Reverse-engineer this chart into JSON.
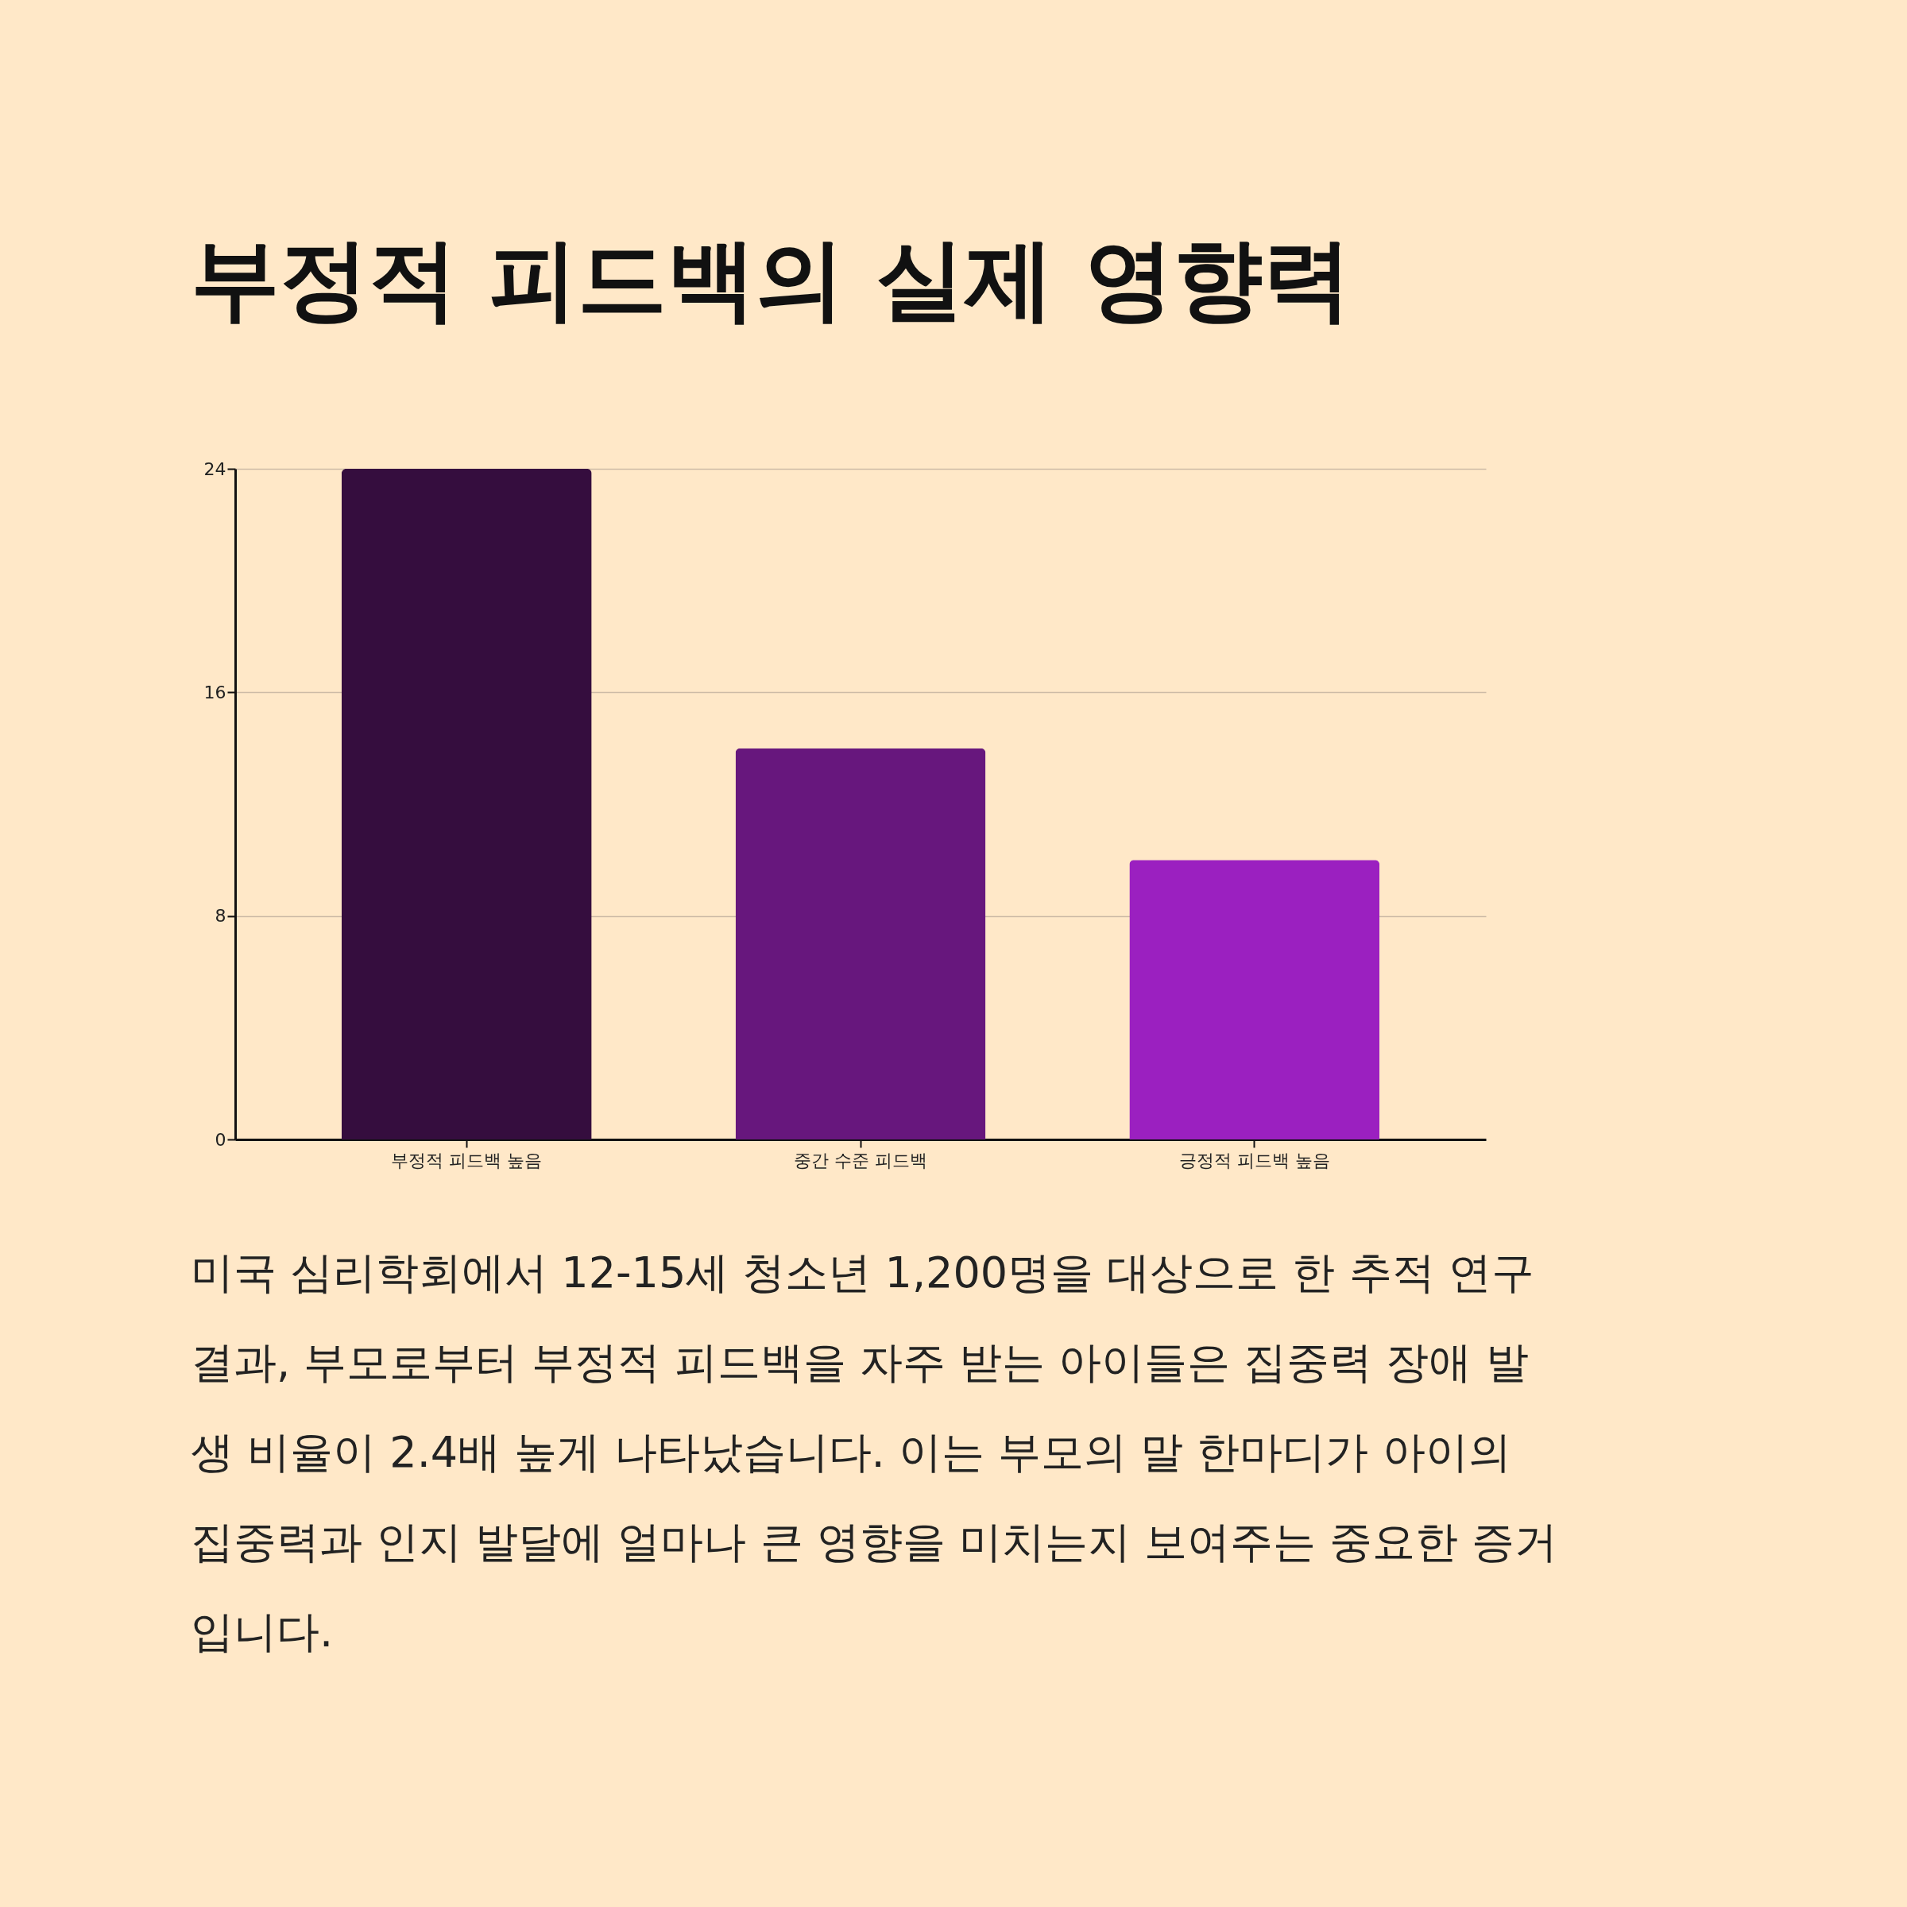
{
  "chart_data": {
    "type": "bar",
    "title": "부정적 피드백의 실제 영향력",
    "categories": [
      "부정적 피드백 높음",
      "중간 수준 피드백",
      "긍정적 피드백 높음"
    ],
    "values": [
      24,
      14,
      10
    ],
    "colors": [
      "#350d3e",
      "#67177d",
      "#9b20c0"
    ],
    "ylim": [
      0,
      24
    ],
    "yticks": [
      0,
      8,
      16,
      24
    ],
    "grid": "y",
    "annotations": [
      "미국 심리학회에서 12-15세 청소년 1,200명을 대상으로 한 추적 연구 결과, 부모로부터 부정적 피드백을 자주 받는 아이들은 집중력 장애 발생 비율이 2.4배 높게 나타났습니다. 이는 부모의 말 한마디가 아이의 집중력과 인지 발달에 얼마나 큰 영향을 미치는지 보여주는 중요한 증거입니다."
    ]
  }
}
